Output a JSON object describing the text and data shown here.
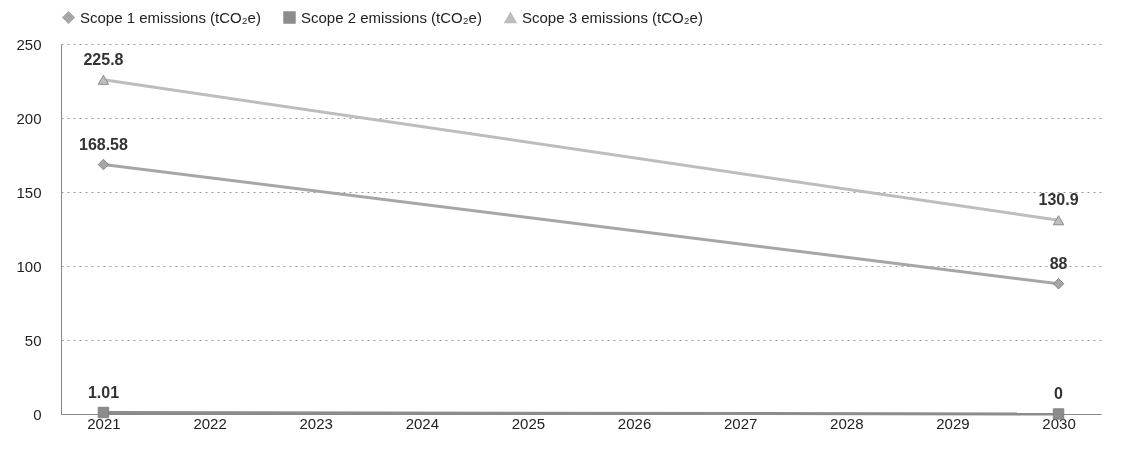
{
  "chart_data": {
    "type": "line",
    "x": [
      2021,
      2030
    ],
    "xlim": [
      2020.6,
      2030.4
    ],
    "xticks": [
      2021,
      2022,
      2023,
      2024,
      2025,
      2026,
      2027,
      2028,
      2029,
      2030
    ],
    "ylim": [
      0,
      250
    ],
    "yticks": [
      0,
      50,
      100,
      150,
      200,
      250
    ],
    "grid": "y",
    "legend": "top",
    "data_labels": true,
    "series": [
      {
        "name": "Scope 1 emissions (tCO₂e)",
        "color": "#a6a6a6",
        "marker": "diamond",
        "values": [
          168.58,
          88
        ]
      },
      {
        "name": "Scope 2 emissions (tCO₂e)",
        "color": "#8c8c8c",
        "marker": "square",
        "values": [
          1.01,
          0
        ]
      },
      {
        "name": "Scope 3 emissions (tCO₂e)",
        "color": "#bdbdbd",
        "marker": "triangle",
        "values": [
          225.8,
          130.9
        ]
      }
    ]
  }
}
